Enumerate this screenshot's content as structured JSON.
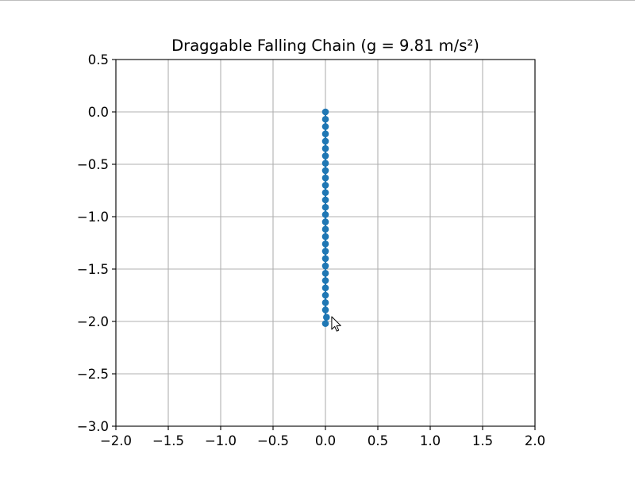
{
  "window": {
    "background": "#ffffff"
  },
  "chart_data": {
    "type": "line",
    "title": "Draggable Falling Chain (g = 9.81 m/s²)",
    "xlabel": "",
    "ylabel": "",
    "xlim": [
      -2.0,
      2.0
    ],
    "ylim": [
      -3.0,
      0.5
    ],
    "grid": true,
    "x_ticks": [
      -2.0,
      -1.5,
      -1.0,
      -0.5,
      0.0,
      0.5,
      1.0,
      1.5,
      2.0
    ],
    "x_tick_labels": [
      "−2.0",
      "−1.5",
      "−1.0",
      "−0.5",
      "0.0",
      "0.5",
      "1.0",
      "1.5",
      "2.0"
    ],
    "y_ticks": [
      0.5,
      0.0,
      -0.5,
      -1.0,
      -1.5,
      -2.0,
      -2.5,
      -3.0
    ],
    "y_tick_labels": [
      "0.5",
      "0.0",
      "−0.5",
      "−1.0",
      "−1.5",
      "−2.0",
      "−2.5",
      "−3.0"
    ],
    "series": [
      {
        "color": "#1f77b4",
        "marker": "circle",
        "x": [
          0,
          0,
          0,
          0,
          0,
          0,
          0,
          0,
          0,
          0,
          0,
          0,
          0,
          0,
          0,
          0,
          0,
          0,
          0,
          0,
          0,
          0,
          0,
          0,
          0,
          0,
          0,
          0,
          0,
          0.01
        ],
        "y": [
          0.0,
          -0.07,
          -0.14,
          -0.21,
          -0.28,
          -0.35,
          -0.42,
          -0.49,
          -0.56,
          -0.63,
          -0.7,
          -0.77,
          -0.84,
          -0.91,
          -0.98,
          -1.05,
          -1.12,
          -1.19,
          -1.26,
          -1.33,
          -1.4,
          -1.47,
          -1.54,
          -1.61,
          -1.68,
          -1.75,
          -1.82,
          -1.89,
          -2.02,
          -1.96
        ]
      }
    ],
    "cursor": {
      "x": 0.06,
      "y": -2.0
    }
  }
}
